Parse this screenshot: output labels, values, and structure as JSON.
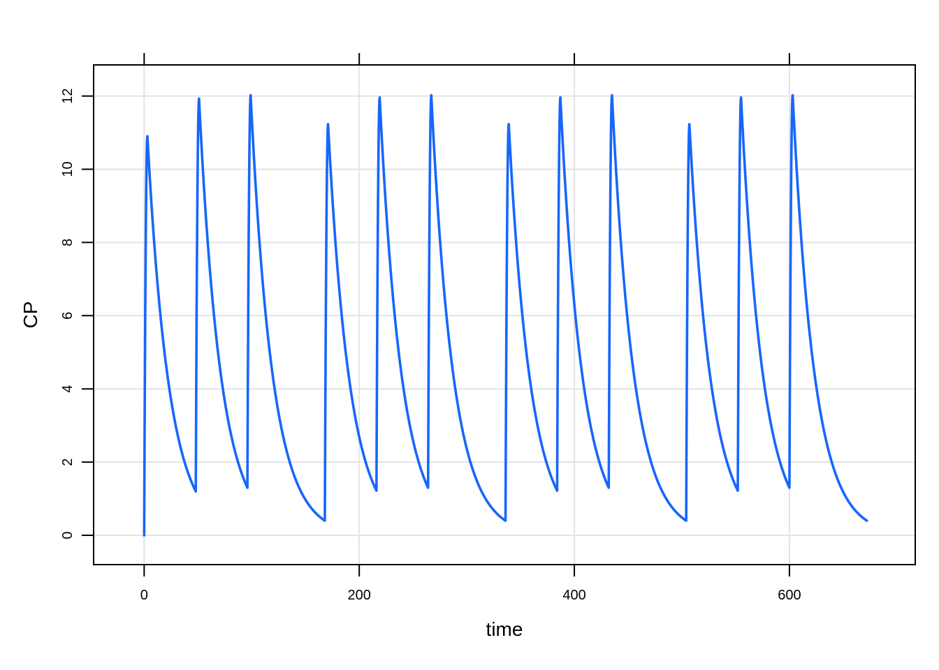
{
  "chart_data": {
    "type": "line",
    "xlabel": "time",
    "ylabel": "CP",
    "xlim": [
      -47,
      717
    ],
    "ylim": [
      -0.8,
      12.85
    ],
    "xticks": [
      0,
      200,
      400,
      600
    ],
    "yticks": [
      0,
      2,
      4,
      6,
      8,
      10,
      12
    ],
    "grid": true,
    "line_color": "#1766fb",
    "grid_color": "#e3e3e3",
    "doses": [
      {
        "t0": 0,
        "trough": 0,
        "peak_t": 3,
        "peak": 10.9,
        "end_t": 48,
        "end": 1.2
      },
      {
        "t0": 48,
        "trough": 1.2,
        "peak_t": 51,
        "peak": 11.93,
        "end_t": 96,
        "end": 1.3
      },
      {
        "t0": 96,
        "trough": 1.3,
        "peak_t": 99,
        "peak": 12.02,
        "end_t": 168,
        "end": 0.4
      },
      {
        "t0": 168,
        "trough": 0.4,
        "peak_t": 171,
        "peak": 11.23,
        "end_t": 216,
        "end": 1.22
      },
      {
        "t0": 216,
        "trough": 1.22,
        "peak_t": 219,
        "peak": 11.96,
        "end_t": 264,
        "end": 1.3
      },
      {
        "t0": 264,
        "trough": 1.3,
        "peak_t": 267,
        "peak": 12.02,
        "end_t": 336,
        "end": 0.4
      },
      {
        "t0": 336,
        "trough": 0.4,
        "peak_t": 339,
        "peak": 11.23,
        "end_t": 384,
        "end": 1.22
      },
      {
        "t0": 384,
        "trough": 1.22,
        "peak_t": 387,
        "peak": 11.96,
        "end_t": 432,
        "end": 1.3
      },
      {
        "t0": 432,
        "trough": 1.3,
        "peak_t": 435,
        "peak": 12.02,
        "end_t": 504,
        "end": 0.4
      },
      {
        "t0": 504,
        "trough": 0.4,
        "peak_t": 507,
        "peak": 11.23,
        "end_t": 552,
        "end": 1.22
      },
      {
        "t0": 552,
        "trough": 1.22,
        "peak_t": 555,
        "peak": 11.96,
        "end_t": 600,
        "end": 1.3
      },
      {
        "t0": 600,
        "trough": 1.3,
        "peak_t": 603,
        "peak": 12.02,
        "end_t": 672,
        "end": 0.4
      }
    ]
  }
}
